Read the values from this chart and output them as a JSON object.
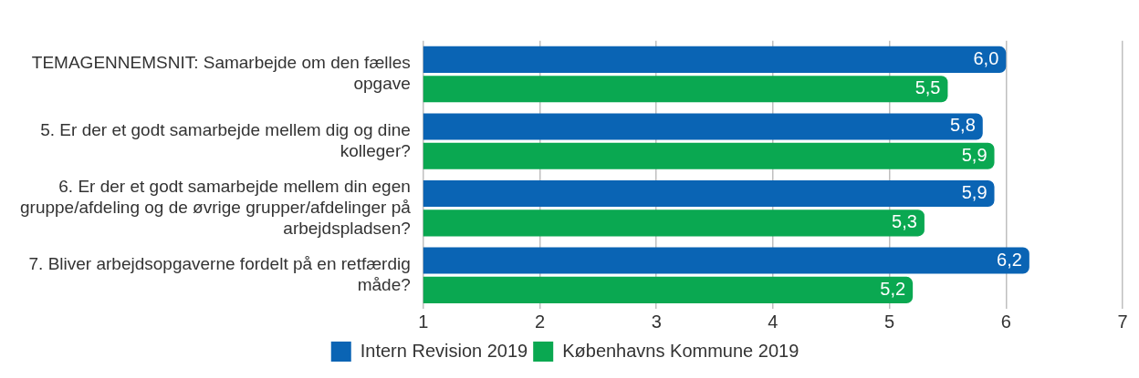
{
  "chart_data": {
    "type": "bar",
    "orientation": "horizontal",
    "categories": [
      "TEMAGENNEMSNIT: Samarbejde om den fælles opgave",
      "5. Er der et godt samarbejde mellem dig og dine kolleger?",
      "6. Er der et godt samarbejde mellem din egen gruppe/afdeling og de øvrige grupper/afdelinger på arbejdspladsen?",
      "7. Bliver arbejdsopgaverne fordelt på en retfærdig måde?"
    ],
    "series": [
      {
        "name": "Intern Revision 2019",
        "color": "#0a64b4",
        "values": [
          6.0,
          5.8,
          5.9,
          6.2
        ],
        "value_labels": [
          "6,0",
          "5,8",
          "5,9",
          "6,2"
        ]
      },
      {
        "name": "Københavns Kommune 2019",
        "color": "#0aa851",
        "values": [
          5.5,
          5.9,
          5.3,
          5.2
        ],
        "value_labels": [
          "5,5",
          "5,9",
          "5,3",
          "5,2"
        ]
      }
    ],
    "xlim": [
      1,
      7
    ],
    "xticks": [
      1,
      2,
      3,
      4,
      5,
      6,
      7
    ],
    "grid": "x",
    "legend": "bottom"
  }
}
